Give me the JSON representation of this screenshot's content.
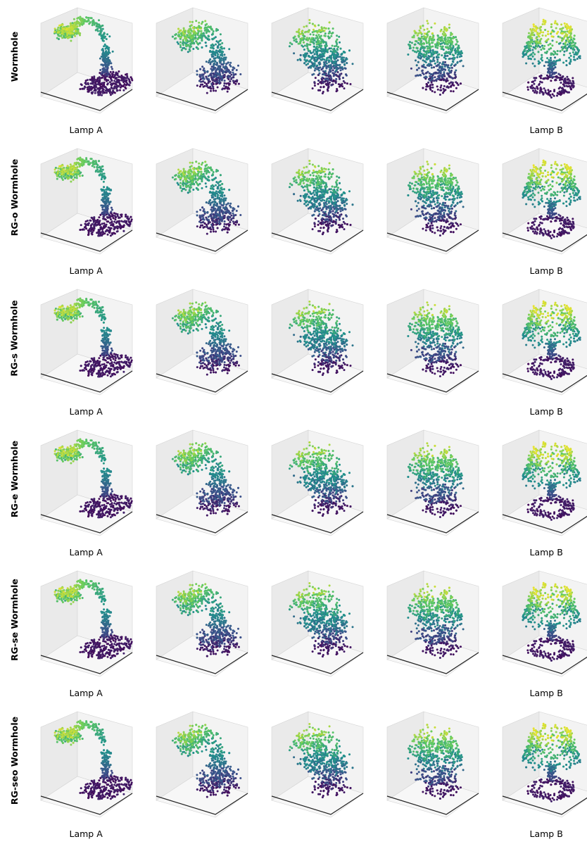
{
  "chart_data": {
    "type": "scatter",
    "subtype": "3d-point-cloud-grid",
    "colormap": "viridis",
    "colormap_stops": [
      "#440154",
      "#3b528b",
      "#21918c",
      "#5ec962",
      "#fde725"
    ],
    "axes_visible": false,
    "panes_color": "#efefef",
    "rows": [
      {
        "label": "Wormhole"
      },
      {
        "label": "RG-o Wormhole"
      },
      {
        "label": "RG-s Wormhole"
      },
      {
        "label": "RG-e Wormhole"
      },
      {
        "label": "RG-se Wormhole"
      },
      {
        "label": "RG-seo Wormhole"
      }
    ],
    "columns": [
      {
        "label": "Lamp A",
        "morph": 0.0
      },
      {
        "label": "",
        "morph": 0.25
      },
      {
        "label": "",
        "morph": 0.5
      },
      {
        "label": "",
        "morph": 0.75
      },
      {
        "label": "Lamp B",
        "morph": 1.0
      }
    ]
  }
}
